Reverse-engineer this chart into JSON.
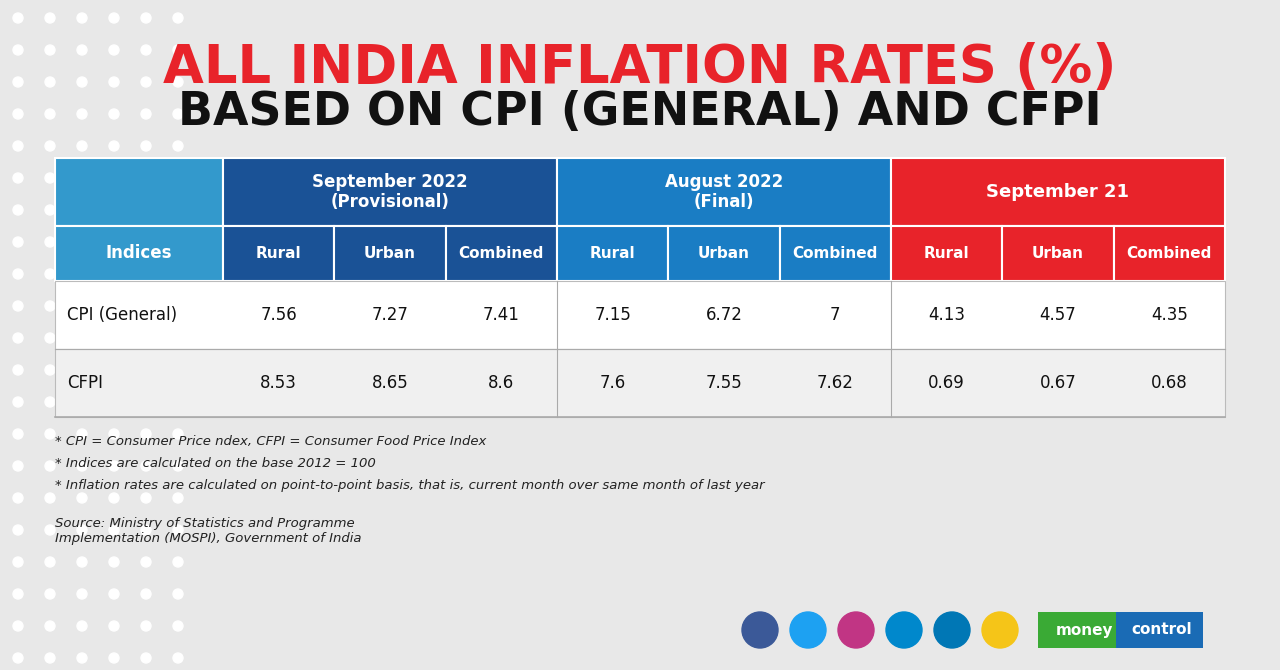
{
  "title_line1": "ALL INDIA INFLATION RATES (%)",
  "title_line2": "BASED ON CPI (GENERAL) AND CFPI",
  "title_line1_color": "#e8232a",
  "title_line2_color": "#111111",
  "bg_color": "#e8e8e8",
  "col_group_headers": [
    "September 2022\n(Provisional)",
    "August 2022\n(Final)",
    "September 21"
  ],
  "col_group_colors": [
    "#1a5296",
    "#1a7dc4",
    "#e8232a"
  ],
  "sub_col_colors": [
    "#1a5296",
    "#1a5296",
    "#1a5296",
    "#1a7dc4",
    "#1a7dc4",
    "#1a7dc4",
    "#e8232a",
    "#e8232a",
    "#e8232a"
  ],
  "index_col_header_color": "#3399cc",
  "sub_labels": [
    "Rural",
    "Urban",
    "Combined",
    "Rural",
    "Urban",
    "Combined",
    "Rural",
    "Urban",
    "Combined"
  ],
  "rows": [
    {
      "label": "CPI (General)",
      "values": [
        "7.56",
        "7.27",
        "7.41",
        "7.15",
        "6.72",
        "7",
        "4.13",
        "4.57",
        "4.35"
      ]
    },
    {
      "label": "CFPI",
      "values": [
        "8.53",
        "8.65",
        "8.6",
        "7.6",
        "7.55",
        "7.62",
        "0.69",
        "0.67",
        "0.68"
      ]
    }
  ],
  "footnotes": [
    "* CPI = Consumer Price ndex, CFPI = Consumer Food Price Index",
    "* Indices are calculated on the base 2012 = 100",
    "* Inflation rates are calculated on point-to-point basis, that is, current month over same month of last year"
  ],
  "source_text": "Source: Ministry of Statistics and Programme\nImplementation (MOSPI), Government of India",
  "icon_colors": [
    "#3b5998",
    "#1da1f2",
    "#c13584",
    "#0088cc",
    "#0077b5",
    "#f5c518"
  ],
  "mc_green": "#3aaa35",
  "mc_blue": "#1a6bb5"
}
